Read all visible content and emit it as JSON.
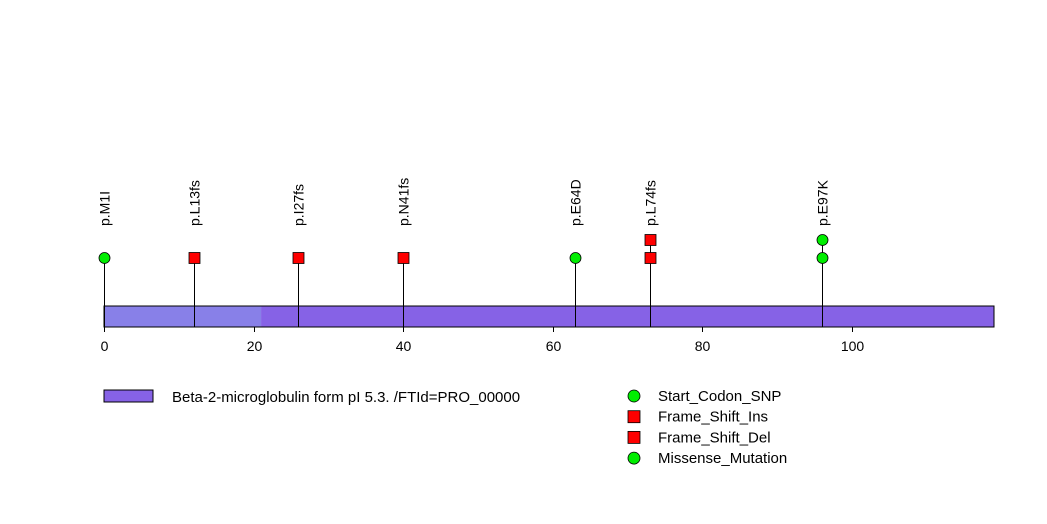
{
  "chart_data": {
    "type": "scatter",
    "title": "",
    "xlabel": "",
    "ylabel": "",
    "xlim": [
      0,
      119
    ],
    "x_ticks": [
      0,
      20,
      40,
      60,
      80,
      100
    ],
    "x_tick_labels": [
      "0",
      "20",
      "40",
      "60",
      "80",
      "100"
    ],
    "protein_length": 119,
    "domains": [
      {
        "name": "Beta-2-microglobulin form pI 5.3. /FTId=PRO_00000",
        "start": 0,
        "end": 21,
        "color": "#8880E8"
      },
      {
        "name": "",
        "start": 21,
        "end": 119,
        "color": "#8662E6"
      }
    ],
    "mutation_types": {
      "Start_Codon_SNP": {
        "color": "#00EE00",
        "shape": "circle"
      },
      "Frame_Shift_Ins": {
        "color": "#FF0000",
        "shape": "square"
      },
      "Frame_Shift_Del": {
        "color": "#FF0000",
        "shape": "square"
      },
      "Missense_Mutation": {
        "color": "#00EE00",
        "shape": "circle"
      }
    },
    "mutations": [
      {
        "label": "p.M1I",
        "position": 0,
        "markers": [
          "Start_Codon_SNP"
        ]
      },
      {
        "label": "p.L13fs",
        "position": 12,
        "markers": [
          "Frame_Shift_Del"
        ]
      },
      {
        "label": "p.I27fs",
        "position": 26,
        "markers": [
          "Frame_Shift_Del"
        ]
      },
      {
        "label": "p.N41fs",
        "position": 40,
        "markers": [
          "Frame_Shift_Del"
        ]
      },
      {
        "label": "p.E64D",
        "position": 63,
        "markers": [
          "Missense_Mutation"
        ]
      },
      {
        "label": "p.L74fs",
        "position": 73,
        "markers": [
          "Frame_Shift_Del",
          "Frame_Shift_Ins"
        ]
      },
      {
        "label": "p.E97K",
        "position": 96,
        "markers": [
          "Missense_Mutation",
          "Missense_Mutation"
        ]
      }
    ],
    "legend": {
      "domains": [
        "Beta-2-microglobulin form pI 5.3. /FTId=PRO_00000"
      ],
      "mutation_types": [
        "Start_Codon_SNP",
        "Frame_Shift_Ins",
        "Frame_Shift_Del",
        "Missense_Mutation"
      ]
    },
    "grid": false
  }
}
